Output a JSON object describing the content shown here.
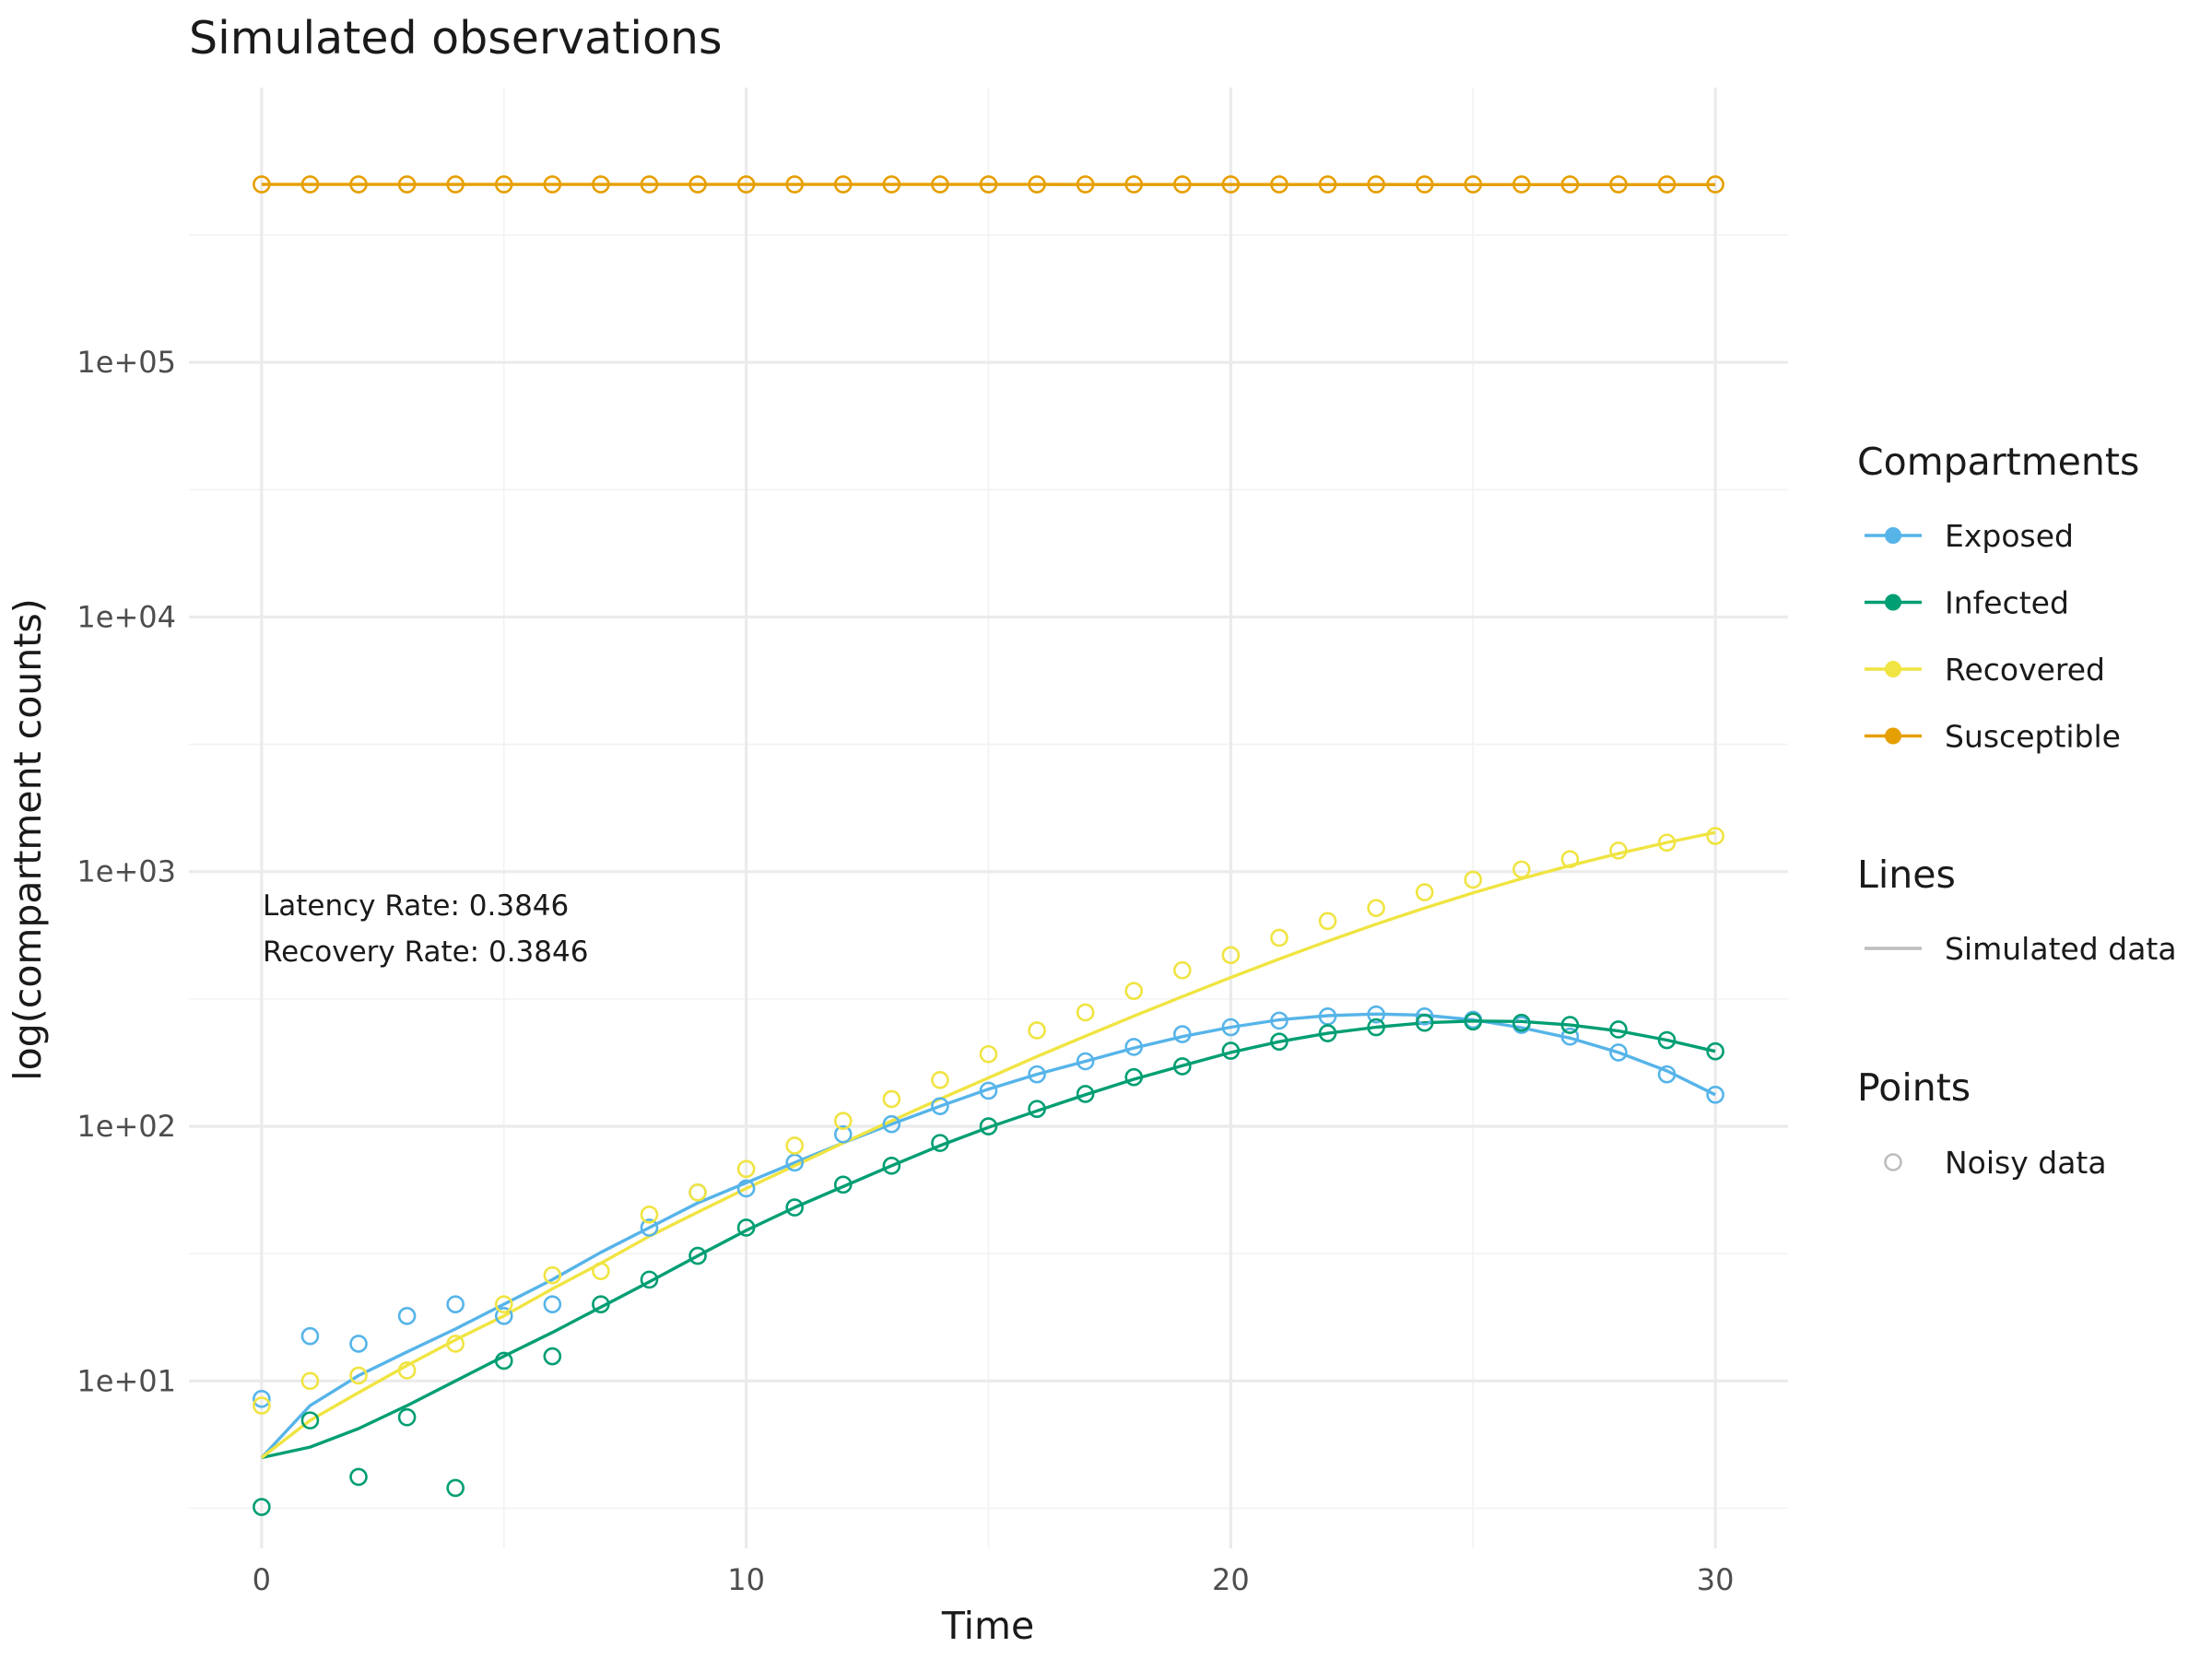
{
  "chart_data": {
    "type": "line",
    "title": "Simulated observations",
    "xlabel": "Time",
    "ylabel": "log(compartment counts)",
    "xlim": [
      -1.5,
      31.5
    ],
    "ylim": [
      2.2,
      1200000.0
    ],
    "yscale": "log10",
    "x_ticks": [
      0,
      10,
      20,
      30
    ],
    "x_tick_labels": [
      "0",
      "10",
      "20",
      "30"
    ],
    "y_ticks": [
      10,
      100,
      1000,
      10000,
      100000
    ],
    "y_tick_labels": [
      "1e+01",
      "1e+02",
      "1e+03",
      "1e+04",
      "1e+05"
    ],
    "grid": true,
    "legend_position": "right",
    "annotations": [
      "Latency Rate: 0.3846",
      "Recovery Rate: 0.3846"
    ],
    "legends": [
      {
        "title": "Compartments",
        "entries": [
          "Exposed",
          "Infected",
          "Recovered",
          "Susceptible"
        ]
      },
      {
        "title": "Lines",
        "entries": [
          "Simulated data"
        ]
      },
      {
        "title": "Points",
        "entries": [
          "Noisy data"
        ]
      }
    ],
    "x": [
      0,
      1,
      2,
      3,
      4,
      5,
      6,
      7,
      8,
      9,
      10,
      11,
      12,
      13,
      14,
      15,
      16,
      17,
      18,
      19,
      20,
      21,
      22,
      23,
      24,
      25,
      26,
      27,
      28,
      29,
      30
    ],
    "series": [
      {
        "name": "Exposed",
        "color": "#56B4E9",
        "line": [
          5,
          8,
          10.5,
          13,
          16,
          20,
          25,
          32,
          40,
          50,
          60,
          72,
          86,
          102,
          120,
          140,
          160,
          180,
          203,
          225,
          245,
          262,
          272,
          276,
          273,
          262,
          244,
          222,
          195,
          165,
          133
        ],
        "points": [
          8.5,
          15,
          14,
          18,
          20,
          18,
          20,
          null,
          40,
          55,
          57,
          72,
          93,
          102,
          120,
          138,
          160,
          180,
          205,
          230,
          245,
          260,
          270,
          275,
          270,
          262,
          250,
          225,
          195,
          160,
          133
        ]
      },
      {
        "name": "Infected",
        "color": "#009E73",
        "line": [
          5,
          5.5,
          6.5,
          8,
          10,
          12.5,
          15.5,
          19.5,
          24.5,
          31,
          39,
          48,
          58,
          70,
          84,
          99,
          115,
          133,
          153,
          173,
          195,
          215,
          232,
          245,
          255,
          259,
          258,
          250,
          237,
          218,
          197
        ],
        "points": [
          3.2,
          7,
          4.2,
          7.2,
          3.8,
          12,
          12.5,
          20,
          25,
          31,
          40,
          48,
          59,
          70,
          86,
          100,
          117,
          134,
          156,
          172,
          198,
          215,
          232,
          245,
          255,
          258,
          255,
          250,
          240,
          218,
          197
        ]
      },
      {
        "name": "Recovered",
        "color": "#F0E442",
        "line": [
          5,
          7,
          9,
          11.5,
          14.5,
          18,
          23,
          29,
          37,
          46,
          57,
          70,
          86,
          105,
          128,
          155,
          188,
          226,
          271,
          323,
          384,
          454,
          533,
          622,
          720,
          826,
          938,
          1056,
          1178,
          1302,
          1426
        ],
        "points": [
          8,
          10,
          10.5,
          11,
          14,
          20,
          26,
          27,
          45,
          55,
          68,
          84,
          105,
          128,
          152,
          192,
          238,
          280,
          340,
          410,
          470,
          550,
          640,
          720,
          830,
          930,
          1020,
          1120,
          1210,
          1300,
          1380
        ]
      },
      {
        "name": "Susceptible",
        "color": "#E69F00",
        "line": [
          499980,
          499978,
          499975,
          499970,
          499964,
          499956,
          499946,
          499933,
          499916,
          499896,
          499872,
          499842,
          499806,
          499765,
          499718,
          499665,
          499609,
          499548,
          499486,
          499422,
          499359,
          499297,
          499238,
          499183,
          499132,
          499085,
          499043,
          499004,
          498969,
          498939,
          498911
        ],
        "points": [
          500000,
          500000,
          500000,
          500000,
          500000,
          500000,
          500000,
          500000,
          500000,
          500000,
          500000,
          500000,
          500000,
          500000,
          500000,
          500000,
          500000,
          500000,
          500000,
          500000,
          500000,
          500000,
          500000,
          500000,
          500000,
          500000,
          500000,
          500000,
          500000,
          500000,
          500000
        ]
      }
    ]
  }
}
